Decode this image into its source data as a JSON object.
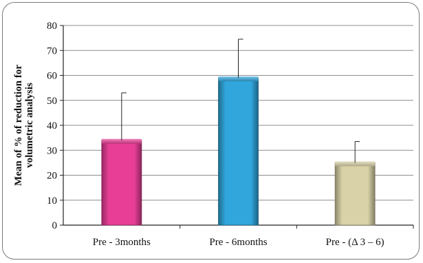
{
  "chart_data": {
    "type": "bar",
    "title": "",
    "xlabel": "",
    "ylabel": "Mean of % of reduction for volumetric analysis",
    "ylabel_lines": [
      "Mean of % of reduction for",
      "volumetric analysis"
    ],
    "categories": [
      "Pre - 3months",
      "Pre - 6months",
      "Pre - (Δ 3 – 6)"
    ],
    "values": [
      34,
      59,
      25
    ],
    "error_upper": [
      53,
      74.5,
      33.5
    ],
    "ylim": [
      0,
      80
    ],
    "yticks": [
      "0",
      "10",
      "20",
      "30",
      "40",
      "50",
      "60",
      "70",
      "80"
    ],
    "grid": true,
    "legend": "none",
    "colors": [
      "#e83e96",
      "#31a6dc",
      "#d9d2a8"
    ]
  }
}
